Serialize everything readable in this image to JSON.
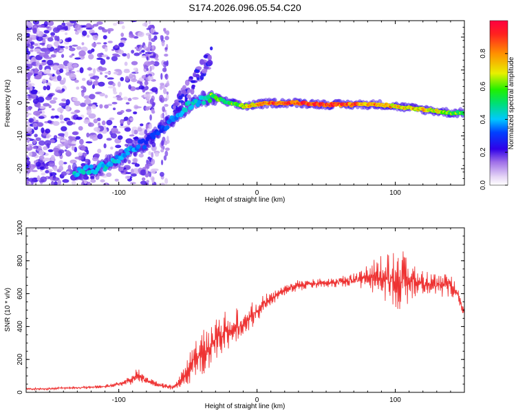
{
  "title": "S174.2026.096.05.54.C20",
  "colors": {
    "snr_line": "#ee3333",
    "axis": "#000000",
    "colormap": [
      "#ffffff",
      "#c8a8f0",
      "#6a2ce0",
      "#1a1aff",
      "#00c8ff",
      "#00e060",
      "#f0f000",
      "#ff9000",
      "#ff1010"
    ]
  },
  "chart_data": [
    {
      "type": "heatmap",
      "name": "spectrogram",
      "xlabel": "Height of straight line (km)",
      "ylabel": "Frequency (Hz)",
      "xlim": [
        -167,
        150
      ],
      "ylim": [
        -25,
        25
      ],
      "x_ticks": [
        -100,
        0,
        100
      ],
      "x_tick_labels": [
        "-100",
        "0",
        "100"
      ],
      "y_ticks": [
        -20,
        -10,
        0,
        10,
        20
      ],
      "y_tick_labels": [
        "-20",
        "-10",
        "0",
        "10",
        "20"
      ],
      "colorbar": {
        "label": "Normalized spectral amplitude",
        "range": [
          0,
          1
        ],
        "ticks": [
          0,
          0.2,
          0.4,
          0.6,
          0.8
        ],
        "tick_labels": [
          "0.0",
          "0.2",
          "0.4",
          "0.6",
          "0.8"
        ]
      },
      "ridge": {
        "description": "dominant frequency trace",
        "points": [
          {
            "x": -130,
            "f": -21,
            "amp": 0.42
          },
          {
            "x": -115,
            "f": -20,
            "amp": 0.45
          },
          {
            "x": -100,
            "f": -17,
            "amp": 0.4
          },
          {
            "x": -90,
            "f": -14,
            "amp": 0.38
          },
          {
            "x": -80,
            "f": -12,
            "amp": 0.3
          },
          {
            "x": -70,
            "f": -8,
            "amp": 0.3
          },
          {
            "x": -60,
            "f": -5,
            "amp": 0.35
          },
          {
            "x": -50,
            "f": -1,
            "amp": 0.45
          },
          {
            "x": -40,
            "f": 1,
            "amp": 0.4
          },
          {
            "x": -30,
            "f": 1.5,
            "amp": 0.6
          },
          {
            "x": -20,
            "f": 0,
            "amp": 0.55
          },
          {
            "x": -10,
            "f": -1,
            "amp": 0.6
          },
          {
            "x": 0,
            "f": -0.5,
            "amp": 0.75
          },
          {
            "x": 10,
            "f": 0,
            "amp": 0.85
          },
          {
            "x": 30,
            "f": 0,
            "amp": 0.9
          },
          {
            "x": 50,
            "f": -0.5,
            "amp": 0.9
          },
          {
            "x": 70,
            "f": -0.5,
            "amp": 0.85
          },
          {
            "x": 90,
            "f": -0.5,
            "amp": 0.75
          },
          {
            "x": 100,
            "f": -1,
            "amp": 0.7
          },
          {
            "x": 110,
            "f": -1.5,
            "amp": 0.7
          },
          {
            "x": 120,
            "f": -2,
            "amp": 0.7
          },
          {
            "x": 130,
            "f": -2.5,
            "amp": 0.65
          },
          {
            "x": 140,
            "f": -3,
            "amp": 0.6
          },
          {
            "x": 148,
            "f": -3,
            "amp": 0.55
          }
        ]
      }
    },
    {
      "type": "line",
      "name": "snr",
      "xlabel": "Height of straight line (km)",
      "ylabel": "SNR (10 * v/v)",
      "xlim": [
        -167,
        150
      ],
      "ylim": [
        0,
        1000
      ],
      "x_ticks": [
        -100,
        0,
        100
      ],
      "x_tick_labels": [
        "-100",
        "0",
        "100"
      ],
      "y_ticks": [
        0,
        200,
        400,
        600,
        800,
        1000
      ],
      "y_tick_labels": [
        "0",
        "200",
        "400",
        "600",
        "800",
        "1000"
      ],
      "series": [
        {
          "name": "SNR",
          "x": [
            -167,
            -150,
            -130,
            -110,
            -100,
            -90,
            -85,
            -80,
            -70,
            -60,
            -55,
            -50,
            -45,
            -40,
            -35,
            -30,
            -25,
            -20,
            -15,
            -10,
            -5,
            0,
            5,
            10,
            15,
            20,
            25,
            30,
            40,
            50,
            60,
            70,
            80,
            90,
            100,
            105,
            110,
            120,
            130,
            140,
            145,
            150
          ],
          "values": [
            20,
            22,
            28,
            35,
            50,
            80,
            110,
            70,
            40,
            30,
            70,
            130,
            200,
            230,
            270,
            300,
            350,
            380,
            400,
            420,
            460,
            500,
            540,
            570,
            600,
            620,
            640,
            650,
            660,
            660,
            670,
            680,
            690,
            700,
            690,
            700,
            680,
            660,
            650,
            660,
            600,
            480
          ],
          "noise_amplitude": [
            6,
            7,
            8,
            10,
            14,
            30,
            60,
            20,
            15,
            20,
            50,
            80,
            110,
            120,
            140,
            130,
            140,
            110,
            100,
            100,
            80,
            60,
            50,
            40,
            30,
            30,
            30,
            30,
            30,
            30,
            30,
            40,
            80,
            130,
            170,
            200,
            120,
            70,
            70,
            70,
            60,
            30
          ]
        }
      ]
    }
  ]
}
